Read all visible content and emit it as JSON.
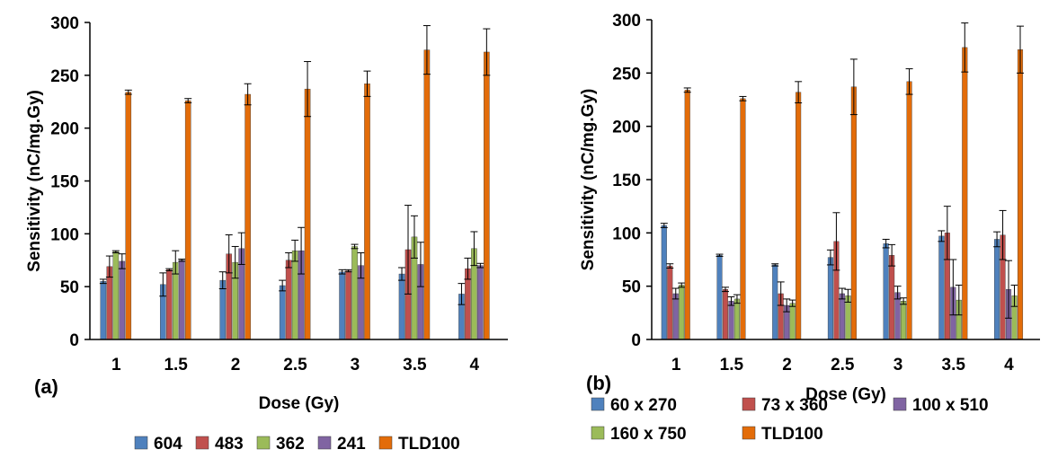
{
  "chart_data": [
    {
      "type": "bar",
      "panel_label": "(a)",
      "categories": [
        "1",
        "1.5",
        "2",
        "2.5",
        "3",
        "3.5",
        "4"
      ],
      "xlabel": "Dose (Gy)",
      "ylabel": "Sensitivity (nC/mg.Gy)",
      "ylim": [
        0,
        300
      ],
      "yticks": [
        "0",
        "50",
        "100",
        "150",
        "200",
        "250",
        "300"
      ],
      "error_bars": true,
      "legend_position": "bottom",
      "series": [
        {
          "name": "604",
          "color": "#4f81bd",
          "values": [
            55,
            52,
            56,
            51,
            64,
            62,
            43
          ],
          "errors": [
            2,
            11,
            8,
            5,
            2,
            6,
            10
          ]
        },
        {
          "name": "483",
          "color": "#c0504d",
          "values": [
            69,
            66,
            81,
            75,
            65,
            85,
            67
          ],
          "errors": [
            10,
            1,
            18,
            7,
            1,
            42,
            10
          ]
        },
        {
          "name": "362",
          "color": "#9bbb59",
          "values": [
            83,
            73,
            73,
            84,
            88,
            97,
            86
          ],
          "errors": [
            1,
            11,
            15,
            10,
            2,
            20,
            16
          ]
        },
        {
          "name": "241",
          "color": "#8064a2",
          "values": [
            74,
            75,
            86,
            84,
            70,
            71,
            70
          ],
          "errors": [
            7,
            1,
            15,
            22,
            12,
            21,
            2
          ]
        },
        {
          "name": "TLD100",
          "color": "#e36c09",
          "values": [
            234,
            226,
            232,
            237,
            242,
            274,
            272
          ],
          "errors": [
            2,
            2,
            10,
            26,
            12,
            23,
            22
          ]
        }
      ]
    },
    {
      "type": "bar",
      "panel_label": "(b)",
      "categories": [
        "1",
        "1.5",
        "2",
        "2.5",
        "3",
        "3.5",
        "4"
      ],
      "xlabel": "Dose (Gy)",
      "ylabel": "Sensitivity (nC/mg.Gy)",
      "ylim": [
        0,
        300
      ],
      "yticks": [
        "0",
        "50",
        "100",
        "150",
        "200",
        "250",
        "300"
      ],
      "error_bars": true,
      "legend_position": "bottom",
      "series": [
        {
          "name": "60 x 270",
          "color": "#4f81bd",
          "values": [
            107,
            79,
            70,
            77,
            90,
            97,
            94
          ],
          "errors": [
            2,
            1,
            1,
            7,
            4,
            5,
            7
          ]
        },
        {
          "name": "73 x 360",
          "color": "#c0504d",
          "values": [
            69,
            47,
            43,
            92,
            79,
            100,
            98
          ],
          "errors": [
            2,
            2,
            11,
            27,
            10,
            25,
            23
          ]
        },
        {
          "name": "100 x 510",
          "color": "#8064a2",
          "values": [
            43,
            36,
            32,
            43,
            44,
            49,
            47
          ],
          "errors": [
            5,
            4,
            6,
            5,
            6,
            26,
            27
          ]
        },
        {
          "name": "160 x 750",
          "color": "#9bbb59",
          "values": [
            51,
            38,
            34,
            41,
            36,
            37,
            41
          ],
          "errors": [
            2,
            4,
            3,
            6,
            3,
            14,
            10
          ]
        },
        {
          "name": "TLD100",
          "color": "#e36c09",
          "values": [
            234,
            226,
            232,
            237,
            242,
            274,
            272
          ],
          "errors": [
            2,
            2,
            10,
            26,
            12,
            23,
            22
          ]
        }
      ]
    }
  ]
}
